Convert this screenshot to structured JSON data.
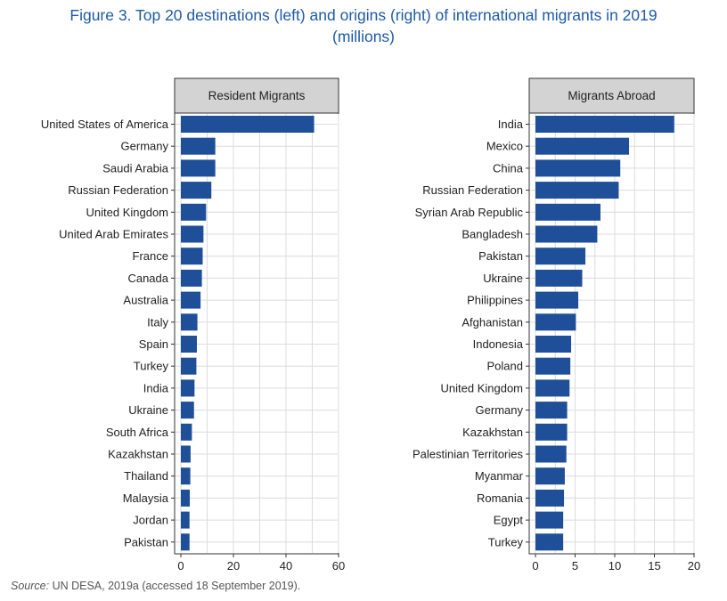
{
  "figure": {
    "title_line1": "Figure 3. Top 20 destinations (left) and origins (right) of international migrants in 2019",
    "title_line2": "(millions)",
    "source_label": "Source:",
    "source_text": "UN DESA, 2019a (accessed 18 September 2019)."
  },
  "colors": {
    "bar": "#1f4f99",
    "strip": "#d3d3d3",
    "grid": "#dcdcdc"
  },
  "chart_data": [
    {
      "type": "bar",
      "orientation": "horizontal",
      "title": "Resident Migrants",
      "categories": [
        "United States of America",
        "Germany",
        "Saudi Arabia",
        "Russian Federation",
        "United Kingdom",
        "United Arab Emirates",
        "France",
        "Canada",
        "Australia",
        "Italy",
        "Spain",
        "Turkey",
        "India",
        "Ukraine",
        "South Africa",
        "Kazakhstan",
        "Thailand",
        "Malaysia",
        "Jordan",
        "Pakistan"
      ],
      "values": [
        50.7,
        13.1,
        13.1,
        11.6,
        9.6,
        8.6,
        8.3,
        8.0,
        7.5,
        6.3,
        6.1,
        5.9,
        5.2,
        5.0,
        4.2,
        3.7,
        3.6,
        3.4,
        3.3,
        3.3
      ],
      "xlim": [
        0,
        60
      ],
      "xticks": [
        0,
        20,
        40,
        60
      ],
      "grid": true
    },
    {
      "type": "bar",
      "orientation": "horizontal",
      "title": "Migrants Abroad",
      "categories": [
        "India",
        "Mexico",
        "China",
        "Russian Federation",
        "Syrian Arab Republic",
        "Bangladesh",
        "Pakistan",
        "Ukraine",
        "Philippines",
        "Afghanistan",
        "Indonesia",
        "Poland",
        "United Kingdom",
        "Germany",
        "Kazakhstan",
        "Palestinian Territories",
        "Myanmar",
        "Romania",
        "Egypt",
        "Turkey"
      ],
      "values": [
        17.5,
        11.8,
        10.7,
        10.5,
        8.2,
        7.8,
        6.3,
        5.9,
        5.4,
        5.1,
        4.5,
        4.4,
        4.3,
        4.0,
        4.0,
        3.9,
        3.7,
        3.6,
        3.5,
        3.5
      ],
      "xlim": [
        0,
        20
      ],
      "xticks": [
        0,
        5,
        10,
        15,
        20
      ],
      "grid": true
    }
  ]
}
